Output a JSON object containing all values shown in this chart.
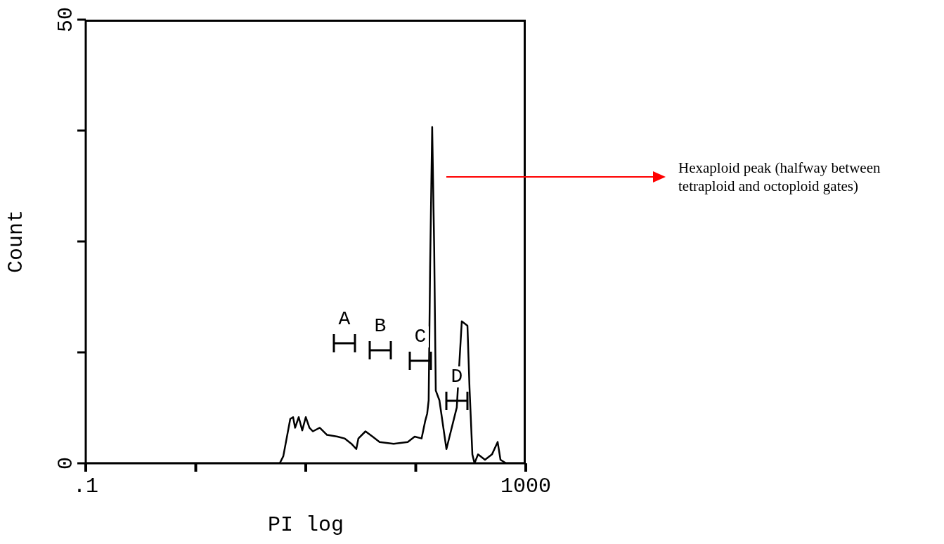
{
  "chart_data": {
    "type": "line",
    "xlabel": "PI log",
    "ylabel": "Count",
    "log": "x",
    "xlim": [
      0.1,
      1000
    ],
    "xticks": [
      {
        "value": 0.1,
        "label": ".1"
      },
      {
        "value": 1,
        "label": null
      },
      {
        "value": 10,
        "label": null
      },
      {
        "value": 100,
        "label": null
      },
      1000
    ],
    "ylim": [
      0,
      50
    ],
    "yticks": [
      0,
      {
        "value": 12.5,
        "label": null
      },
      {
        "value": 25,
        "label": null
      },
      {
        "value": 37.5,
        "label": null
      },
      50
    ],
    "marker": "none",
    "line_style": "solid",
    "x": [
      0.1,
      5.8,
      6.25,
      7.23,
      7.67,
      8.0,
      8.63,
      9.29,
      10,
      10.8,
      11.6,
      13.4,
      15.6,
      19.4,
      22.5,
      26,
      28.8,
      30.1,
      34.9,
      40.5,
      46.9,
      62.9,
      84.5,
      97.8,
      113,
      122,
      127,
      131,
      135,
      141,
      147,
      152,
      164,
      190,
      236,
      262,
      295,
      308,
      327,
      342,
      368,
      426,
      493,
      555,
      589,
      662,
      1000
    ],
    "series": [
      {
        "color": "#000000",
        "values": [
          0,
          0,
          0.8,
          5,
          5.2,
          4,
          5.2,
          3.7,
          5.2,
          4,
          3.6,
          4,
          3.2,
          3,
          2.8,
          2.2,
          1.6,
          2.8,
          3.6,
          3,
          2.4,
          2.2,
          2.4,
          3,
          2.8,
          4.8,
          5.6,
          7.1,
          22,
          37.9,
          24.4,
          8.2,
          7.1,
          1.6,
          6.3,
          16,
          15.5,
          8.5,
          1,
          0,
          1,
          0.4,
          1,
          2.4,
          0.4,
          0,
          0
        ]
      }
    ],
    "annotations": [
      "A",
      "B",
      "C",
      "D",
      "Hexaploid peak (halfway between tetraploid and octoploid gates)"
    ]
  }
}
